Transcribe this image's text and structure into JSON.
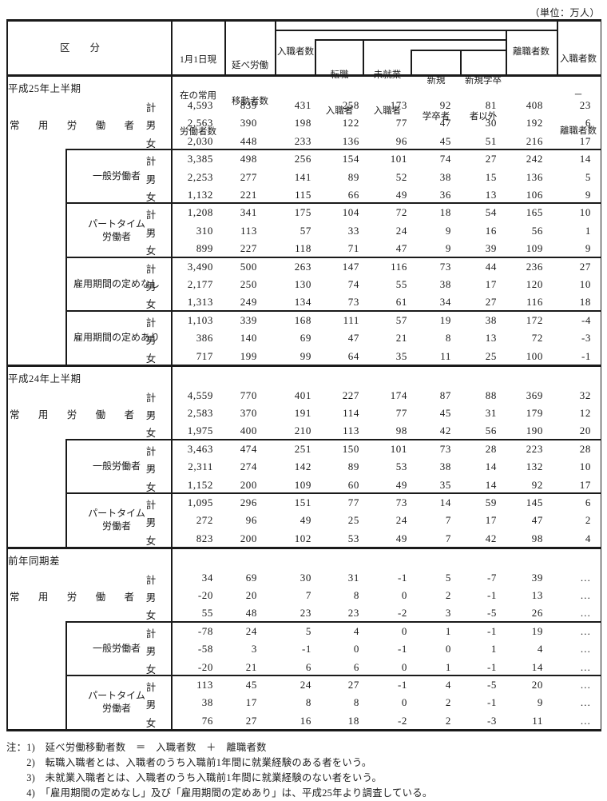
{
  "unit": "（単位：万人）",
  "header": {
    "kubun": "区　　分",
    "joyo_rodosha_su": [
      "1月1日現",
      "在の常用",
      "労働者数"
    ],
    "nobe_ido": [
      "延べ労働",
      "移動者数"
    ],
    "nyushokusha_su": "入職者数",
    "tenshoku": [
      "転職",
      "入職者"
    ],
    "mishugyo": [
      "未就業",
      "入職者"
    ],
    "shinki_gakusotsu": [
      "新規",
      "学卒者"
    ],
    "shinki_gakusotsu_igai": [
      "新規学卒",
      "者以外"
    ],
    "rishokusha_su": "離職者数",
    "sa": [
      "入職者数",
      "－",
      "離職者数"
    ]
  },
  "row_keys": [
    "計",
    "男",
    "女"
  ],
  "sections": [
    {
      "label": "平成25年上半期",
      "groups": [
        {
          "label": "常用労働者",
          "style": "justify",
          "box": false,
          "rows": [
            [
              "4,593",
              "839",
              "431",
              "258",
              "173",
              "92",
              "81",
              "408",
              "23"
            ],
            [
              "2,563",
              "390",
              "198",
              "122",
              "77",
              "47",
              "30",
              "192",
              "6"
            ],
            [
              "2,030",
              "448",
              "233",
              "136",
              "96",
              "45",
              "51",
              "216",
              "17"
            ]
          ]
        },
        {
          "label": "一般労働者",
          "style": "center",
          "box": true,
          "rows": [
            [
              "3,385",
              "498",
              "256",
              "154",
              "101",
              "74",
              "27",
              "242",
              "14"
            ],
            [
              "2,253",
              "277",
              "141",
              "89",
              "52",
              "38",
              "15",
              "136",
              "5"
            ],
            [
              "1,132",
              "221",
              "115",
              "66",
              "49",
              "36",
              "13",
              "106",
              "9"
            ]
          ]
        },
        {
          "label": "パートタイム労働者",
          "style": "center",
          "box": true,
          "lines": [
            "パートタイム",
            "労働者"
          ],
          "rows": [
            [
              "1,208",
              "341",
              "175",
              "104",
              "72",
              "18",
              "54",
              "165",
              "10"
            ],
            [
              "310",
              "113",
              "57",
              "33",
              "24",
              "9",
              "16",
              "56",
              "1"
            ],
            [
              "899",
              "227",
              "118",
              "71",
              "47",
              "9",
              "39",
              "109",
              "9"
            ]
          ]
        },
        {
          "label": "雇用期間の定めなし",
          "style": "center",
          "box": true,
          "rows": [
            [
              "3,490",
              "500",
              "263",
              "147",
              "116",
              "73",
              "44",
              "236",
              "27"
            ],
            [
              "2,177",
              "250",
              "130",
              "74",
              "55",
              "38",
              "17",
              "120",
              "10"
            ],
            [
              "1,313",
              "249",
              "134",
              "73",
              "61",
              "34",
              "27",
              "116",
              "18"
            ]
          ]
        },
        {
          "label": "雇用期間の定めあり",
          "style": "center",
          "box": true,
          "rows": [
            [
              "1,103",
              "339",
              "168",
              "111",
              "57",
              "19",
              "38",
              "172",
              "-4"
            ],
            [
              "386",
              "140",
              "69",
              "47",
              "21",
              "8",
              "13",
              "72",
              "-3"
            ],
            [
              "717",
              "199",
              "99",
              "64",
              "35",
              "11",
              "25",
              "100",
              "-1"
            ]
          ]
        }
      ]
    },
    {
      "label": "平成24年上半期",
      "groups": [
        {
          "label": "常用労働者",
          "style": "justify",
          "box": false,
          "rows": [
            [
              "4,559",
              "770",
              "401",
              "227",
              "174",
              "87",
              "88",
              "369",
              "32"
            ],
            [
              "2,583",
              "370",
              "191",
              "114",
              "77",
              "45",
              "31",
              "179",
              "12"
            ],
            [
              "1,975",
              "400",
              "210",
              "113",
              "98",
              "42",
              "56",
              "190",
              "20"
            ]
          ]
        },
        {
          "label": "一般労働者",
          "style": "center",
          "box": true,
          "rows": [
            [
              "3,463",
              "474",
              "251",
              "150",
              "101",
              "73",
              "28",
              "223",
              "28"
            ],
            [
              "2,311",
              "274",
              "142",
              "89",
              "53",
              "38",
              "14",
              "132",
              "10"
            ],
            [
              "1,152",
              "200",
              "109",
              "60",
              "49",
              "35",
              "14",
              "92",
              "17"
            ]
          ]
        },
        {
          "label": "パートタイム労働者",
          "style": "center",
          "box": true,
          "lines": [
            "パートタイム",
            "労働者"
          ],
          "rows": [
            [
              "1,095",
              "296",
              "151",
              "77",
              "73",
              "14",
              "59",
              "145",
              "6"
            ],
            [
              "272",
              "96",
              "49",
              "25",
              "24",
              "7",
              "17",
              "47",
              "2"
            ],
            [
              "823",
              "200",
              "102",
              "53",
              "49",
              "7",
              "42",
              "98",
              "4"
            ]
          ]
        }
      ]
    },
    {
      "label": "前年同期差",
      "groups": [
        {
          "label": "常用労働者",
          "style": "justify",
          "box": false,
          "rows": [
            [
              "34",
              "69",
              "30",
              "31",
              "-1",
              "5",
              "-7",
              "39",
              "…"
            ],
            [
              "-20",
              "20",
              "7",
              "8",
              "0",
              "2",
              "-1",
              "13",
              "…"
            ],
            [
              "55",
              "48",
              "23",
              "23",
              "-2",
              "3",
              "-5",
              "26",
              "…"
            ]
          ]
        },
        {
          "label": "一般労働者",
          "style": "center",
          "box": true,
          "rows": [
            [
              "-78",
              "24",
              "5",
              "4",
              "0",
              "1",
              "-1",
              "19",
              "…"
            ],
            [
              "-58",
              "3",
              "-1",
              "0",
              "-1",
              "0",
              "1",
              "4",
              "…"
            ],
            [
              "-20",
              "21",
              "6",
              "6",
              "0",
              "1",
              "-1",
              "14",
              "…"
            ]
          ]
        },
        {
          "label": "パートタイム労働者",
          "style": "center",
          "box": true,
          "lines": [
            "パートタイム",
            "労働者"
          ],
          "rows": [
            [
              "113",
              "45",
              "24",
              "27",
              "-1",
              "4",
              "-5",
              "20",
              "…"
            ],
            [
              "38",
              "17",
              "8",
              "8",
              "0",
              "2",
              "-1",
              "9",
              "…"
            ],
            [
              "76",
              "27",
              "16",
              "18",
              "-2",
              "2",
              "-3",
              "11",
              "…"
            ]
          ]
        }
      ]
    }
  ],
  "notes": [
    "注：1)　延べ労働移動者数　＝　入職者数　＋　離職者数",
    "　　2)　転職入職者とは、入職者のうち入職前1年間に就業経験のある者をいう。",
    "　　3)　未就業入職者とは、入職者のうち入職前1年間に就業経験のない者をいう。",
    "　　4)　「雇用期間の定めなし」及び「雇用期間の定めあり」は、平成25年より調査している。"
  ]
}
